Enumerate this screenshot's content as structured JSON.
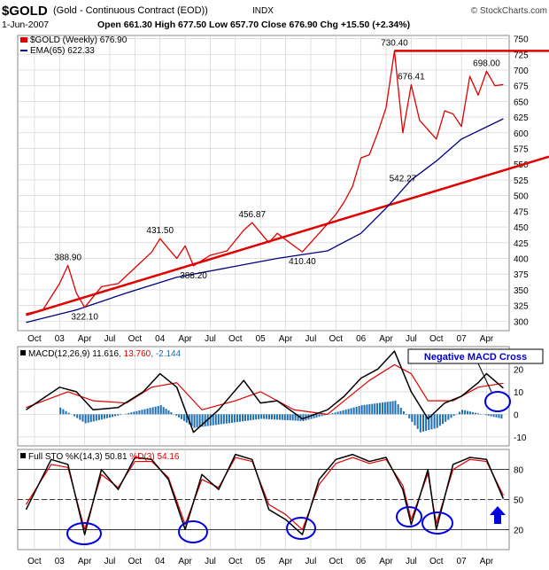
{
  "header": {
    "symbol": "$GOLD",
    "name": "(Gold - Continuous Contract (EOD))",
    "exchange": "INDX",
    "watermark": "© StockCharts.com",
    "date": "1-Jun-2007",
    "ohlc": "Open 661.30  High 677.50  Low 657.70  Close 676.90  Chg +15.50 (+2.34%)",
    "legend_price": "$GOLD (Weekly) 676.90",
    "legend_ema": "EMA(65) 622.33"
  },
  "colors": {
    "price": "#e00000",
    "ema": "#000080",
    "trendline": "#e00000",
    "macd": "#000000",
    "signal": "#e00000",
    "histogram": "#1f6fb0",
    "circles": "#0000e0",
    "grid": "#cccccc",
    "callout_text": "#0000d0"
  },
  "chart_data": [
    {
      "type": "line",
      "title": "$GOLD (Weekly) 676.90",
      "series": [
        {
          "name": "$GOLD (Weekly) 676.90",
          "x": [
            "2002-09",
            "2002-11",
            "2003-01",
            "2003-02",
            "2003-03",
            "2003-04",
            "2003-06",
            "2003-08",
            "2003-10",
            "2003-12",
            "2004-01",
            "2004-03",
            "2004-04",
            "2004-05",
            "2004-07",
            "2004-09",
            "2004-11",
            "2004-12",
            "2005-02",
            "2005-03",
            "2005-05",
            "2005-06",
            "2005-08",
            "2005-10",
            "2005-11",
            "2005-12",
            "2006-01",
            "2006-02",
            "2006-03",
            "2006-04",
            "2006-05",
            "2006-06",
            "2006-07",
            "2006-08",
            "2006-10",
            "2006-11",
            "2006-12",
            "2007-01",
            "2007-02",
            "2007-03",
            "2007-04",
            "2007-05",
            "2007-06"
          ],
          "values": [
            312,
            318,
            360,
            388.9,
            345,
            322.1,
            355,
            360,
            385,
            410,
            431.5,
            400,
            420,
            388.2,
            405,
            412,
            445,
            456.87,
            425,
            440,
            420,
            410.4,
            440,
            470,
            490,
            515,
            560,
            565,
            600,
            640,
            730.4,
            600,
            676.41,
            620,
            590,
            635,
            630,
            610,
            690,
            660,
            698,
            675,
            676.9
          ]
        },
        {
          "name": "EMA(65) 622.33",
          "x": [
            "2002-09",
            "2003-03",
            "2003-09",
            "2004-03",
            "2004-09",
            "2005-03",
            "2005-09",
            "2006-01",
            "2006-04",
            "2006-07",
            "2006-10",
            "2007-01",
            "2007-06"
          ],
          "values": [
            298,
            318,
            345,
            370,
            385,
            400,
            412,
            440,
            480,
            525,
            555,
            590,
            622.33
          ]
        }
      ],
      "annotations": [
        {
          "label": "388.90",
          "x": "2003-02",
          "y": 388.9
        },
        {
          "label": "322.10",
          "x": "2003-04",
          "y": 322.1
        },
        {
          "label": "431.50",
          "x": "2004-01",
          "y": 431.5
        },
        {
          "label": "388.20",
          "x": "2004-05",
          "y": 388.2
        },
        {
          "label": "456.87",
          "x": "2004-12",
          "y": 456.87
        },
        {
          "label": "410.40",
          "x": "2005-06",
          "y": 410.4
        },
        {
          "label": "730.40",
          "x": "2006-05",
          "y": 730.4
        },
        {
          "label": "676.41",
          "x": "2006-07",
          "y": 676.41
        },
        {
          "label": "542.27",
          "x": "2006-06",
          "y": 542.27
        },
        {
          "label": "698.00",
          "x": "2007-04",
          "y": 698.0
        }
      ],
      "trendlines": [
        {
          "from": {
            "x": "2002-09",
            "y": 310
          },
          "to": {
            "x": "2007-06",
            "y": 540
          }
        },
        {
          "from": {
            "x": "2006-05",
            "y": 730.4
          },
          "to": {
            "x": "2007-06",
            "y": 730.4
          }
        }
      ],
      "y_ticks": [
        300,
        325,
        350,
        375,
        400,
        425,
        450,
        475,
        500,
        525,
        550,
        575,
        600,
        625,
        650,
        675,
        700,
        725,
        750
      ],
      "ylim": [
        285,
        755
      ],
      "grid": true
    },
    {
      "type": "line",
      "title": "MACD(12,26,9) 11.616, 13.760, -2.144",
      "series": [
        {
          "name": "MACD(12,26,9) 11.616",
          "x": [
            "2002-09",
            "2003-01",
            "2003-03",
            "2003-05",
            "2003-08",
            "2003-11",
            "2004-01",
            "2004-03",
            "2004-05",
            "2004-08",
            "2004-11",
            "2005-01",
            "2005-03",
            "2005-06",
            "2005-09",
            "2005-11",
            "2006-01",
            "2006-03",
            "2006-05",
            "2006-07",
            "2006-09",
            "2006-11",
            "2007-01",
            "2007-03",
            "2007-04",
            "2007-06"
          ],
          "values": [
            2,
            12,
            10,
            2,
            3,
            10,
            18,
            12,
            -8,
            2,
            15,
            5,
            6,
            -2,
            2,
            8,
            16,
            20,
            28,
            10,
            -2,
            5,
            8,
            14,
            18,
            11.616
          ]
        },
        {
          "name": "13.760",
          "x": [
            "2002-09",
            "2003-02",
            "2003-05",
            "2003-09",
            "2003-12",
            "2004-03",
            "2004-06",
            "2004-10",
            "2005-01",
            "2005-05",
            "2005-09",
            "2005-12",
            "2006-02",
            "2006-05",
            "2006-07",
            "2006-09",
            "2006-12",
            "2007-03",
            "2007-06"
          ],
          "values": [
            3,
            10,
            6,
            5,
            12,
            14,
            2,
            6,
            10,
            2,
            0,
            9,
            15,
            22,
            18,
            6,
            6,
            12,
            13.76
          ]
        },
        {
          "name": "-2.144",
          "x": [
            "2003-01",
            "2003-04",
            "2004-01",
            "2004-05",
            "2005-01",
            "2005-06",
            "2006-01",
            "2006-05",
            "2006-08",
            "2006-10",
            "2007-01",
            "2007-06"
          ],
          "values": [
            3,
            -4,
            4,
            -6,
            -2,
            -3,
            4,
            6,
            -8,
            -6,
            2,
            -2.144
          ]
        }
      ],
      "y_ticks": [
        -10,
        0,
        10,
        20
      ],
      "callout": "Negative MACD Cross"
    },
    {
      "type": "line",
      "title": "Full STO %K(14,3) %D(3) 50.81, 54.16",
      "series": [
        {
          "name": "%K(14,3) 50.81",
          "x": [
            "2002-09",
            "2002-12",
            "2003-02",
            "2003-04",
            "2003-06",
            "2003-08",
            "2003-10",
            "2003-12",
            "2004-02",
            "2004-04",
            "2004-06",
            "2004-08",
            "2004-10",
            "2004-12",
            "2005-02",
            "2005-04",
            "2005-06",
            "2005-08",
            "2005-10",
            "2005-12",
            "2006-02",
            "2006-04",
            "2006-06",
            "2006-07",
            "2006-09",
            "2006-10",
            "2006-12",
            "2007-02",
            "2007-04",
            "2007-06"
          ],
          "values": [
            40,
            90,
            85,
            15,
            80,
            60,
            92,
            90,
            70,
            20,
            75,
            60,
            95,
            90,
            40,
            30,
            15,
            70,
            90,
            95,
            88,
            92,
            60,
            25,
            80,
            20,
            85,
            92,
            90,
            50.81
          ]
        },
        {
          "name": "%D(3) 54.16",
          "x": [
            "2002-09",
            "2002-12",
            "2003-02",
            "2003-04",
            "2003-06",
            "2003-08",
            "2003-10",
            "2003-12",
            "2004-02",
            "2004-04",
            "2004-06",
            "2004-08",
            "2004-10",
            "2004-12",
            "2005-02",
            "2005-04",
            "2005-06",
            "2005-08",
            "2005-10",
            "2005-12",
            "2006-02",
            "2006-04",
            "2006-06",
            "2006-07",
            "2006-09",
            "2006-10",
            "2006-12",
            "2007-02",
            "2007-04",
            "2007-06"
          ],
          "values": [
            45,
            85,
            82,
            20,
            75,
            62,
            88,
            88,
            72,
            25,
            70,
            62,
            92,
            88,
            45,
            35,
            20,
            65,
            86,
            92,
            86,
            90,
            64,
            30,
            76,
            26,
            80,
            90,
            88,
            54.16
          ]
        }
      ],
      "y_ticks": [
        20,
        50,
        80
      ]
    }
  ],
  "x_axis_labels": [
    "Oct",
    "03",
    "Apr",
    "Jul",
    "Oct",
    "04",
    "Apr",
    "Jul",
    "Oct",
    "05",
    "Apr",
    "Jul",
    "Oct",
    "06",
    "Apr",
    "Jul",
    "Oct",
    "07",
    "Apr"
  ],
  "x_axis_months": [
    "2002-10",
    "2003-01",
    "2003-04",
    "2003-07",
    "2003-10",
    "2004-01",
    "2004-04",
    "2004-07",
    "2004-10",
    "2005-01",
    "2005-04",
    "2005-07",
    "2005-10",
    "2006-01",
    "2006-04",
    "2006-07",
    "2006-10",
    "2007-01",
    "2007-04"
  ]
}
